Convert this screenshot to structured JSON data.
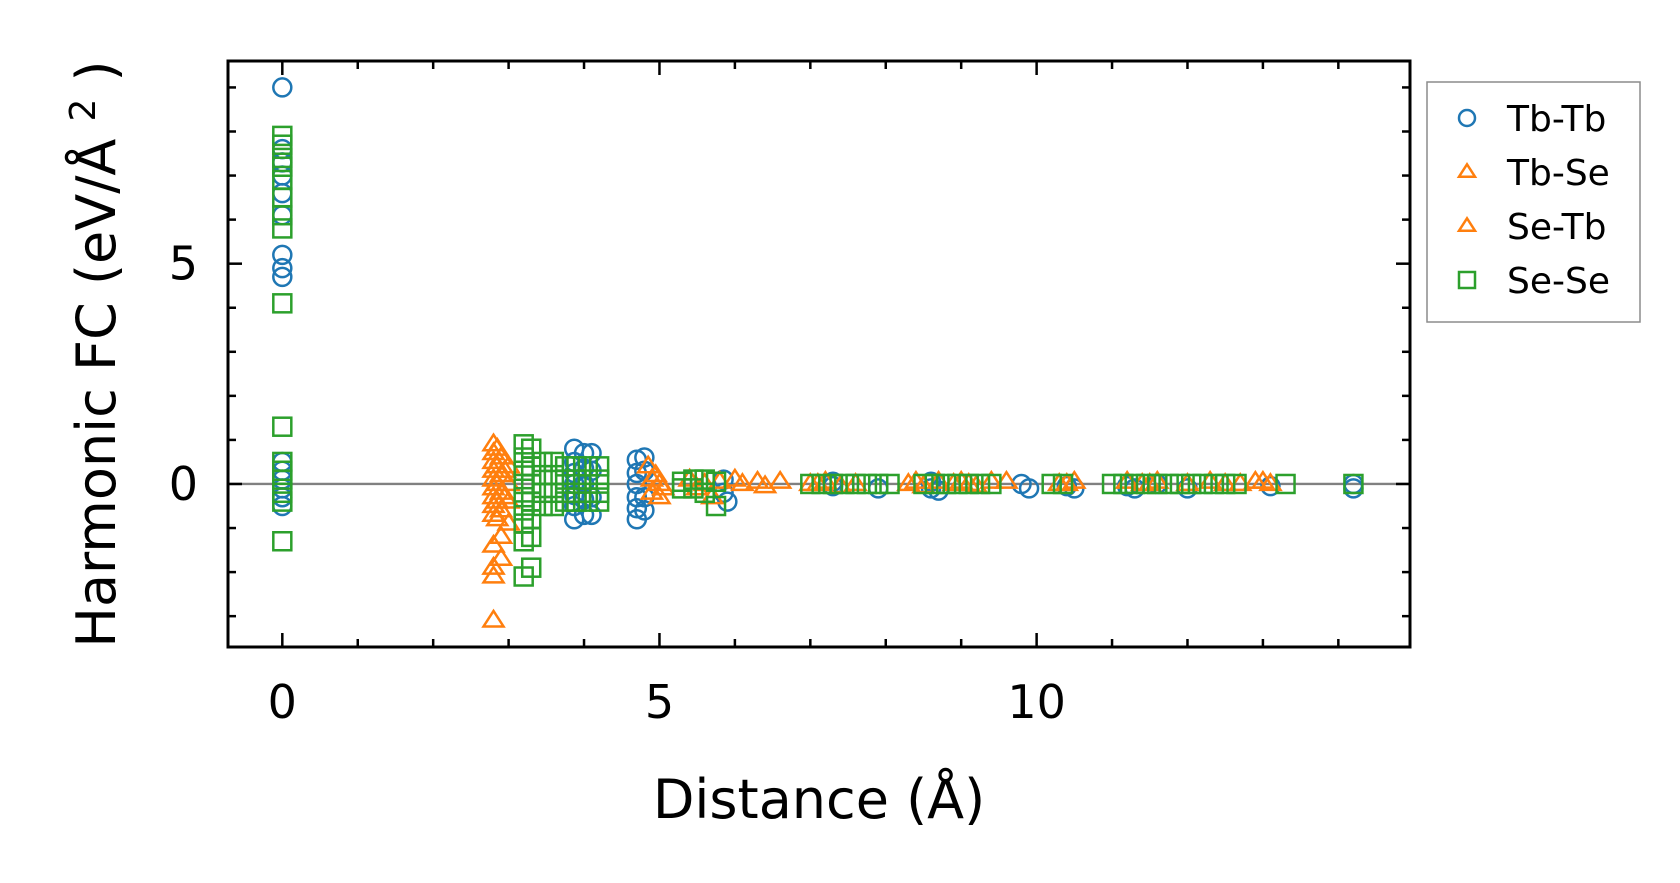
{
  "chart_data": {
    "type": "scatter",
    "xlabel": "Distance (Å)",
    "ylabel": {
      "main": "Harmonic FC (eV/Å",
      "superscript": "2",
      "suffix": ")"
    },
    "xlim": [
      -0.72,
      14.95
    ],
    "ylim": [
      -3.7,
      9.6
    ],
    "xticks": [
      0,
      5,
      10
    ],
    "yticks": [
      0,
      5
    ],
    "xtick_labels": [
      "0",
      "5",
      "10"
    ],
    "ytick_labels": [
      "0",
      "5"
    ],
    "zero_line": true,
    "legend_position": "outside-top-right",
    "colors": {
      "tb_tb": "#1f77b4",
      "tb_se": "#ff7f0e",
      "se_tb": "#ff7f0e",
      "se_se": "#2ca02c"
    },
    "series": [
      {
        "name": "Tb-Tb",
        "marker": "circle",
        "color": "#1f77b4",
        "points": [
          [
            0,
            9.0
          ],
          [
            0,
            7.6
          ],
          [
            0,
            7.3
          ],
          [
            0,
            7.0
          ],
          [
            0,
            6.6
          ],
          [
            0,
            6.1
          ],
          [
            0,
            5.2
          ],
          [
            0,
            4.9
          ],
          [
            0,
            4.7
          ],
          [
            0,
            0.5
          ],
          [
            0,
            0.3
          ],
          [
            0,
            0.1
          ],
          [
            0,
            -0.1
          ],
          [
            0,
            -0.3
          ],
          [
            0,
            -0.5
          ],
          [
            3.87,
            0.8
          ],
          [
            3.87,
            0.5
          ],
          [
            3.87,
            0.25
          ],
          [
            3.87,
            0.0
          ],
          [
            3.87,
            -0.25
          ],
          [
            3.87,
            -0.5
          ],
          [
            3.87,
            -0.8
          ],
          [
            4.0,
            0.7
          ],
          [
            4.0,
            0.35
          ],
          [
            4.0,
            0.0
          ],
          [
            4.0,
            -0.35
          ],
          [
            4.0,
            -0.7
          ],
          [
            4.1,
            0.7
          ],
          [
            4.1,
            0.3
          ],
          [
            4.1,
            -0.3
          ],
          [
            4.1,
            -0.7
          ],
          [
            4.7,
            0.55
          ],
          [
            4.7,
            0.25
          ],
          [
            4.7,
            0.0
          ],
          [
            4.7,
            -0.3
          ],
          [
            4.7,
            -0.55
          ],
          [
            4.7,
            -0.8
          ],
          [
            4.8,
            0.6
          ],
          [
            4.8,
            0.3
          ],
          [
            4.8,
            -0.3
          ],
          [
            4.8,
            -0.6
          ],
          [
            5.85,
            -0.2
          ],
          [
            5.85,
            0.1
          ],
          [
            5.9,
            -0.4
          ],
          [
            7.3,
            0.05
          ],
          [
            7.3,
            -0.05
          ],
          [
            7.9,
            -0.1
          ],
          [
            8.6,
            0.05
          ],
          [
            8.6,
            -0.1
          ],
          [
            8.7,
            -0.15
          ],
          [
            9.8,
            0.0
          ],
          [
            9.9,
            -0.1
          ],
          [
            10.4,
            -0.05
          ],
          [
            10.5,
            -0.1
          ],
          [
            11.2,
            -0.05
          ],
          [
            11.3,
            -0.1
          ],
          [
            11.6,
            0.0
          ],
          [
            12.0,
            -0.1
          ],
          [
            13.1,
            -0.05
          ],
          [
            14.2,
            0.0
          ],
          [
            14.2,
            -0.1
          ]
        ]
      },
      {
        "name": "Tb-Se",
        "marker": "triangle",
        "color": "#ff7f0e",
        "points": [
          [
            2.8,
            0.9
          ],
          [
            2.8,
            0.7
          ],
          [
            2.8,
            0.5
          ],
          [
            2.8,
            0.3
          ],
          [
            2.8,
            0.1
          ],
          [
            2.8,
            -0.1
          ],
          [
            2.8,
            -0.3
          ],
          [
            2.8,
            -0.5
          ],
          [
            2.8,
            -0.7
          ],
          [
            2.8,
            -1.4
          ],
          [
            2.8,
            -1.9
          ],
          [
            2.8,
            -2.1
          ],
          [
            2.8,
            -3.1
          ],
          [
            2.9,
            0.6
          ],
          [
            2.9,
            0.2
          ],
          [
            2.9,
            -0.2
          ],
          [
            2.9,
            -0.6
          ],
          [
            2.9,
            -1.2
          ],
          [
            2.9,
            -1.7
          ],
          [
            3.0,
            0.4
          ],
          [
            3.0,
            0.0
          ],
          [
            3.0,
            -0.4
          ],
          [
            3.0,
            -0.9
          ],
          [
            4.85,
            0.4
          ],
          [
            4.9,
            0.1
          ],
          [
            4.9,
            -0.2
          ],
          [
            5.0,
            0.0
          ],
          [
            5.0,
            -0.3
          ],
          [
            5.4,
            0.1
          ],
          [
            5.5,
            -0.1
          ],
          [
            5.6,
            0.0
          ],
          [
            5.7,
            -0.3
          ],
          [
            5.8,
            0.05
          ],
          [
            6.0,
            0.1
          ],
          [
            6.1,
            0.0
          ],
          [
            6.3,
            0.05
          ],
          [
            6.4,
            -0.05
          ],
          [
            6.6,
            0.05
          ],
          [
            7.0,
            0.0
          ],
          [
            7.2,
            0.05
          ],
          [
            7.4,
            -0.05
          ],
          [
            7.6,
            0.0
          ],
          [
            8.4,
            0.05
          ],
          [
            8.5,
            -0.05
          ],
          [
            8.7,
            0.05
          ],
          [
            8.9,
            0.0
          ],
          [
            9.0,
            0.05
          ],
          [
            9.2,
            -0.05
          ],
          [
            9.4,
            0.05
          ],
          [
            9.6,
            0.05
          ],
          [
            10.3,
            0.0
          ],
          [
            10.5,
            0.05
          ],
          [
            11.2,
            0.05
          ],
          [
            11.4,
            0.0
          ],
          [
            11.6,
            0.05
          ],
          [
            12.0,
            0.0
          ],
          [
            12.3,
            0.05
          ],
          [
            12.7,
            0.0
          ],
          [
            12.9,
            0.05
          ],
          [
            13.0,
            0.05
          ],
          [
            13.1,
            0.0
          ]
        ]
      },
      {
        "name": "Se-Tb",
        "marker": "triangle",
        "color": "#ff7f0e",
        "points": [
          [
            2.85,
            0.8
          ],
          [
            2.85,
            0.4
          ],
          [
            2.85,
            0.0
          ],
          [
            2.85,
            -0.4
          ],
          [
            2.85,
            -0.8
          ],
          [
            2.95,
            0.3
          ],
          [
            2.95,
            -0.3
          ],
          [
            4.95,
            0.2
          ],
          [
            5.05,
            -0.1
          ],
          [
            7.1,
            0.0
          ],
          [
            8.3,
            0.0
          ],
          [
            9.1,
            0.0
          ],
          [
            10.4,
            0.0
          ],
          [
            11.5,
            0.0
          ],
          [
            12.5,
            0.0
          ]
        ]
      },
      {
        "name": "Se-Se",
        "marker": "square",
        "color": "#2ca02c",
        "points": [
          [
            0,
            7.9
          ],
          [
            0,
            7.7
          ],
          [
            0,
            7.4
          ],
          [
            0,
            7.2
          ],
          [
            0,
            6.9
          ],
          [
            0,
            6.5
          ],
          [
            0,
            6.1
          ],
          [
            0,
            5.8
          ],
          [
            0,
            4.1
          ],
          [
            0,
            1.3
          ],
          [
            0,
            0.5
          ],
          [
            0,
            0.3
          ],
          [
            0,
            0.1
          ],
          [
            0,
            -0.2
          ],
          [
            0,
            -0.4
          ],
          [
            0,
            -1.3
          ],
          [
            3.2,
            0.9
          ],
          [
            3.2,
            0.6
          ],
          [
            3.2,
            0.3
          ],
          [
            3.2,
            0.0
          ],
          [
            3.2,
            -0.3
          ],
          [
            3.2,
            -0.6
          ],
          [
            3.2,
            -0.9
          ],
          [
            3.2,
            -1.3
          ],
          [
            3.2,
            -2.1
          ],
          [
            3.3,
            0.8
          ],
          [
            3.3,
            0.4
          ],
          [
            3.3,
            0.0
          ],
          [
            3.3,
            -0.4
          ],
          [
            3.3,
            -0.8
          ],
          [
            3.3,
            -1.2
          ],
          [
            3.3,
            -1.9
          ],
          [
            3.45,
            0.5
          ],
          [
            3.45,
            0.2
          ],
          [
            3.45,
            -0.2
          ],
          [
            3.45,
            -0.5
          ],
          [
            3.6,
            0.5
          ],
          [
            3.6,
            0.2
          ],
          [
            3.6,
            -0.2
          ],
          [
            3.6,
            -0.5
          ],
          [
            3.75,
            0.4
          ],
          [
            3.75,
            0.1
          ],
          [
            3.75,
            -0.2
          ],
          [
            3.75,
            -0.4
          ],
          [
            3.9,
            0.4
          ],
          [
            3.9,
            0.1
          ],
          [
            3.9,
            -0.2
          ],
          [
            3.9,
            -0.4
          ],
          [
            4.05,
            0.4
          ],
          [
            4.05,
            0.1
          ],
          [
            4.05,
            -0.2
          ],
          [
            4.05,
            -0.4
          ],
          [
            4.2,
            0.4
          ],
          [
            4.2,
            0.1
          ],
          [
            4.2,
            -0.2
          ],
          [
            4.2,
            -0.4
          ],
          [
            5.3,
            0.05
          ],
          [
            5.3,
            -0.1
          ],
          [
            5.45,
            0.1
          ],
          [
            5.45,
            -0.1
          ],
          [
            5.6,
            0.1
          ],
          [
            5.6,
            -0.2
          ],
          [
            5.75,
            0.05
          ],
          [
            5.75,
            -0.5
          ],
          [
            7.0,
            0.0
          ],
          [
            7.15,
            0.0
          ],
          [
            7.3,
            0.0
          ],
          [
            7.45,
            0.0
          ],
          [
            7.6,
            0.0
          ],
          [
            7.75,
            0.0
          ],
          [
            7.9,
            0.0
          ],
          [
            8.05,
            0.0
          ],
          [
            8.5,
            0.0
          ],
          [
            8.65,
            0.0
          ],
          [
            8.8,
            0.0
          ],
          [
            8.95,
            0.0
          ],
          [
            9.1,
            0.0
          ],
          [
            9.25,
            0.0
          ],
          [
            9.4,
            0.0
          ],
          [
            10.2,
            0.0
          ],
          [
            10.35,
            0.0
          ],
          [
            11.0,
            0.0
          ],
          [
            11.15,
            0.0
          ],
          [
            11.3,
            0.0
          ],
          [
            11.45,
            0.0
          ],
          [
            11.6,
            0.0
          ],
          [
            11.75,
            0.0
          ],
          [
            11.9,
            0.0
          ],
          [
            12.05,
            0.0
          ],
          [
            12.2,
            0.0
          ],
          [
            12.35,
            0.0
          ],
          [
            12.5,
            0.0
          ],
          [
            12.65,
            0.0
          ],
          [
            13.3,
            0.0
          ],
          [
            14.2,
            0.0
          ]
        ]
      }
    ]
  }
}
